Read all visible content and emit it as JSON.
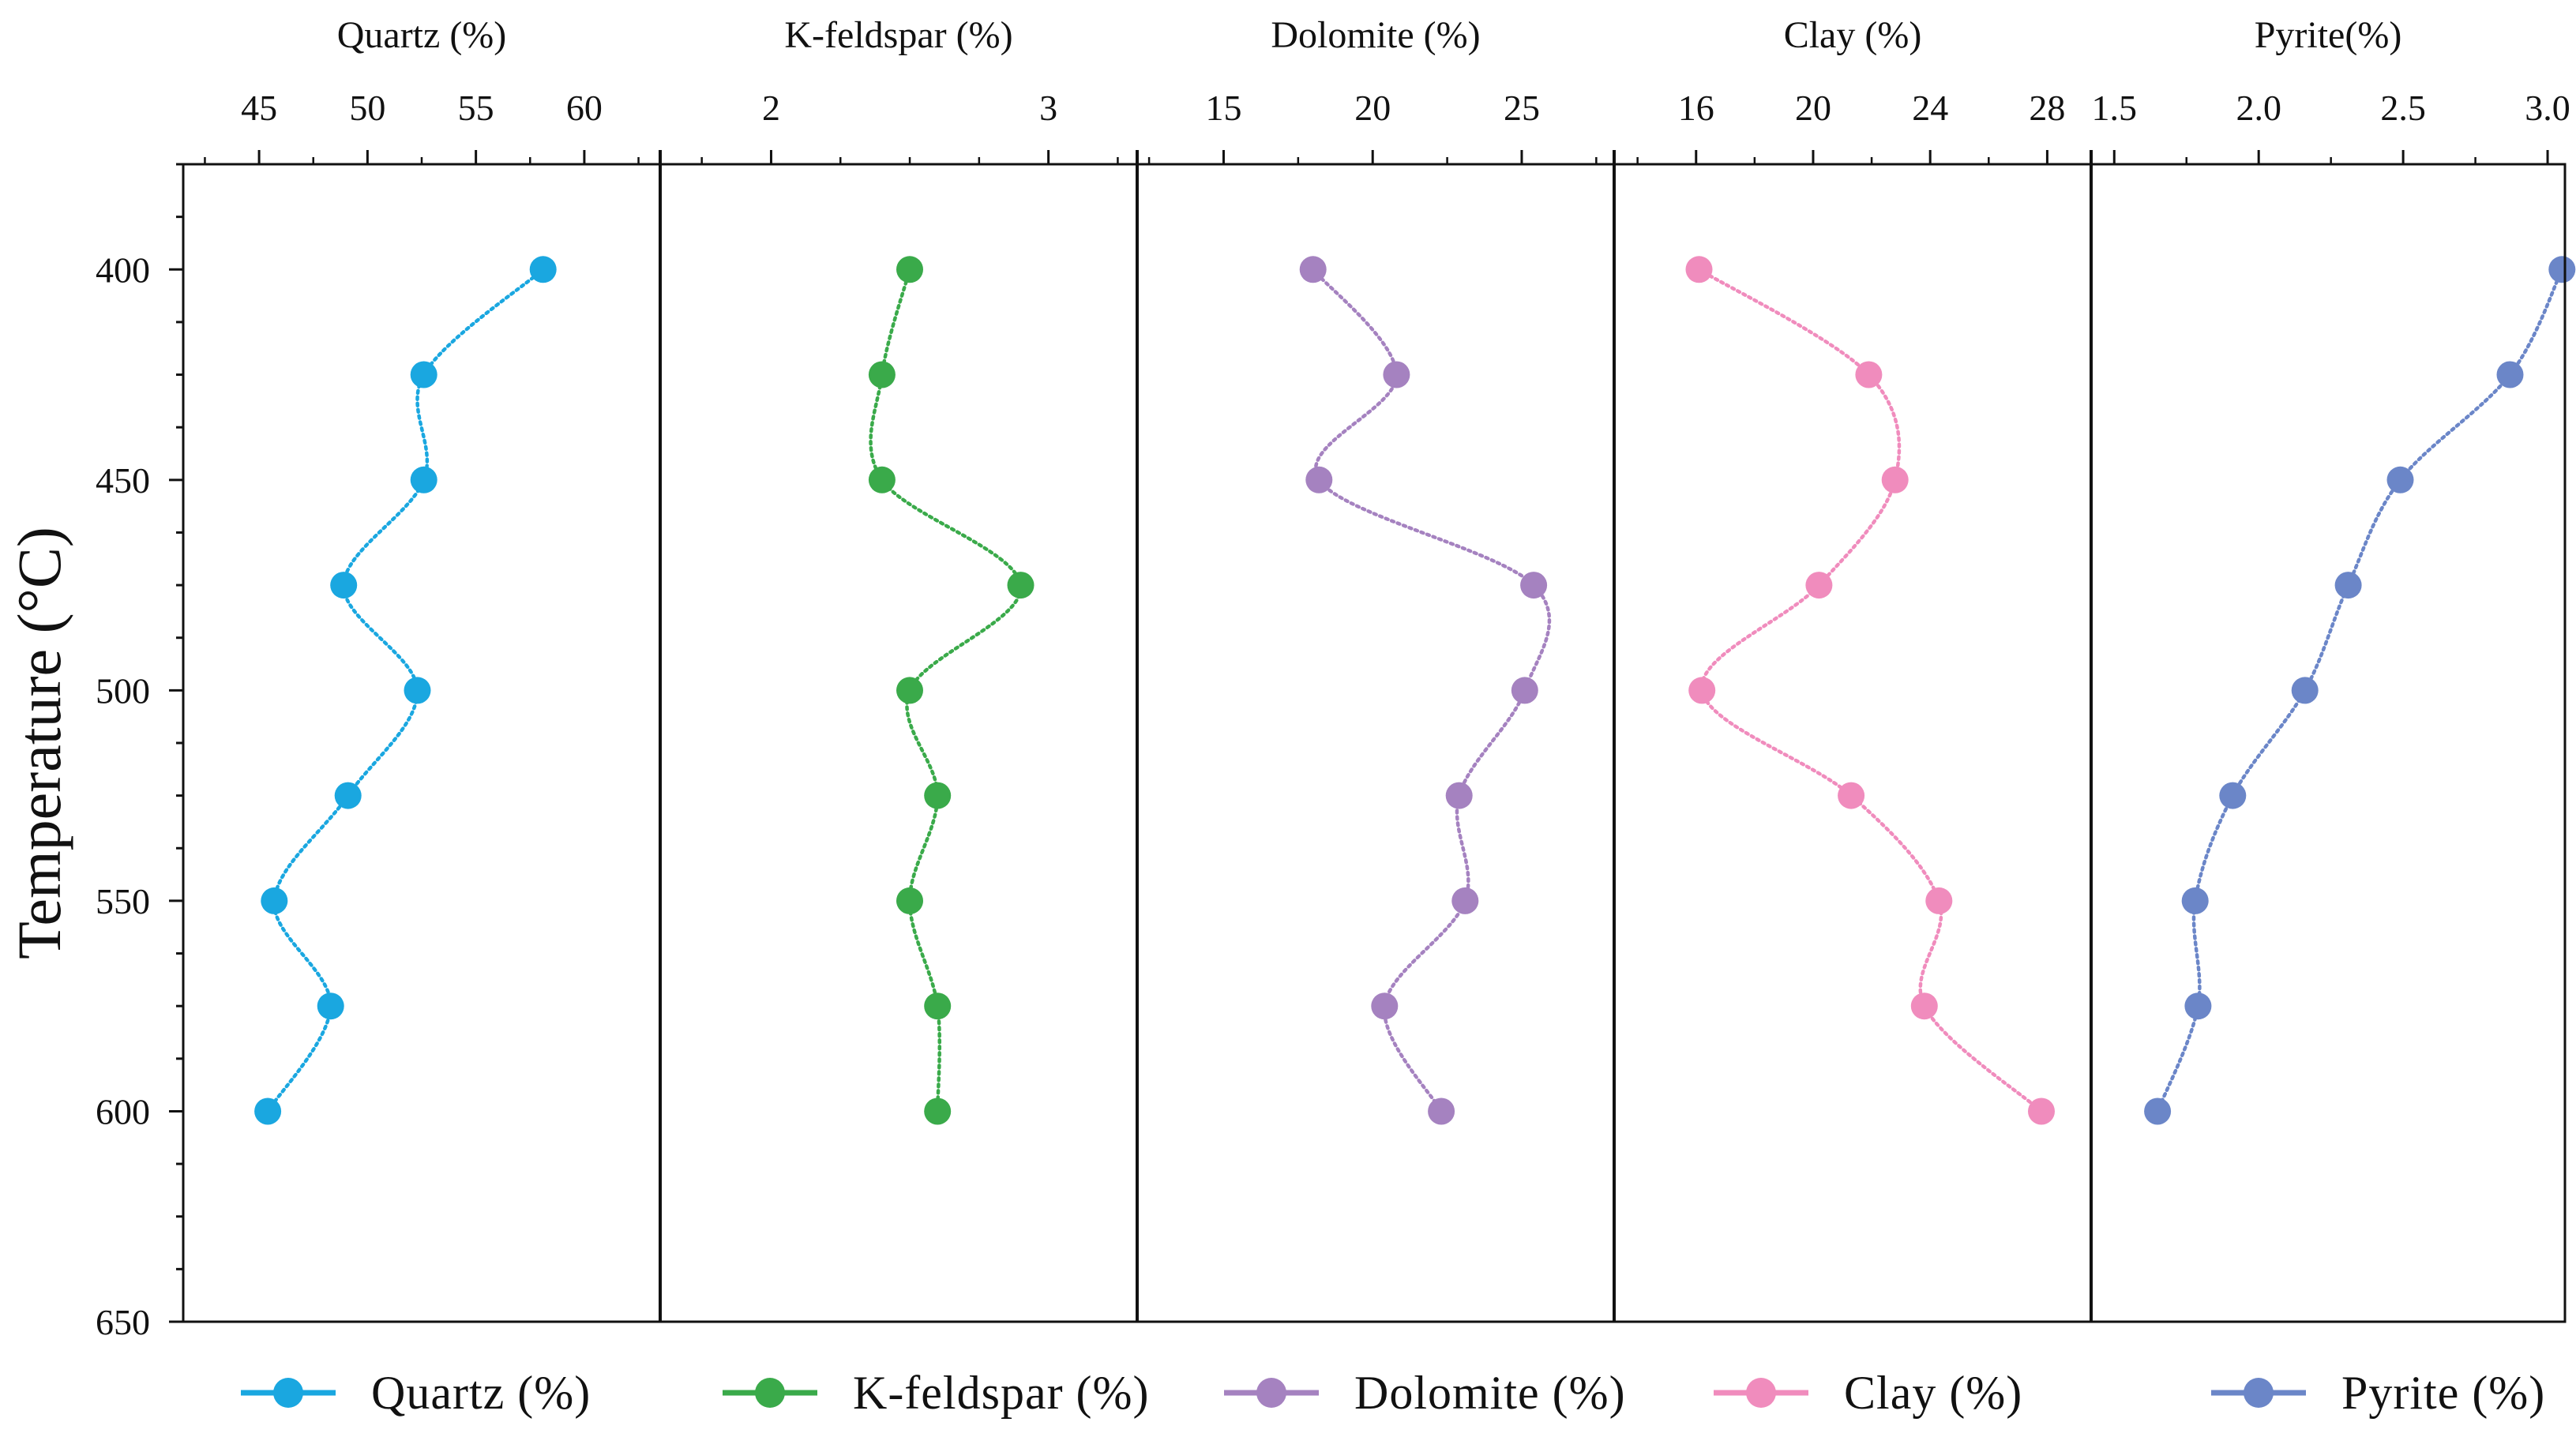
{
  "chart_data": {
    "type": "line",
    "layout": "five side-by-side panels sharing a vertical temperature axis",
    "ylabel": "Temperature (°C)",
    "y_ticks": [
      400,
      450,
      500,
      550,
      600,
      650
    ],
    "ylim": [
      375,
      650
    ],
    "temperatures": [
      400,
      425,
      450,
      475,
      500,
      525,
      550,
      575,
      600
    ],
    "series": [
      {
        "name": "Quartz (%)",
        "legend": "Quartz (%)",
        "color": "#1aa7e0",
        "xlim": [
          41.5,
          63.5
        ],
        "ticks": [
          "45",
          "50",
          "55",
          "60"
        ],
        "tick_values": [
          45,
          50,
          55,
          60
        ],
        "values": [
          58.1,
          52.6,
          52.6,
          48.9,
          52.3,
          49.1,
          45.7,
          48.3,
          45.4
        ]
      },
      {
        "name": "K-feldspar (%)",
        "legend": "K-feldspar (%)",
        "color": "#3aaa4a",
        "xlim": [
          1.6,
          3.32
        ],
        "ticks": [
          "2",
          "3"
        ],
        "tick_values": [
          2,
          3
        ],
        "values": [
          2.5,
          2.4,
          2.4,
          2.9,
          2.5,
          2.6,
          2.5,
          2.6,
          2.6
        ]
      },
      {
        "name": "Dolomite (%)",
        "legend": "Dolomite  (%)",
        "color": "#a582c0",
        "xlim": [
          12.1,
          28.1
        ],
        "ticks": [
          "15",
          "20",
          "25"
        ],
        "tick_values": [
          15,
          20,
          25
        ],
        "values": [
          18.0,
          20.8,
          18.2,
          25.4,
          25.1,
          22.9,
          23.1,
          20.4,
          22.3
        ]
      },
      {
        "name": "Clay (%)",
        "legend": "Clay (%)",
        "color": "#f08cbd",
        "xlim": [
          13.2,
          29.5
        ],
        "ticks": [
          "16",
          "20",
          "24",
          "28"
        ],
        "tick_values": [
          16,
          20,
          24,
          28
        ],
        "values": [
          16.1,
          21.9,
          22.8,
          20.2,
          16.2,
          21.3,
          24.3,
          23.8,
          27.8
        ]
      },
      {
        "name": "Pyrite(%)",
        "legend": "Pyrite (%)",
        "color": "#6b86c8",
        "xlim": [
          1.42,
          3.06
        ],
        "ticks": [
          "1.5",
          "2.0",
          "2.5",
          "3.0"
        ],
        "tick_values": [
          1.5,
          2.0,
          2.5,
          3.0
        ],
        "values": [
          3.05,
          2.87,
          2.49,
          2.31,
          2.16,
          1.91,
          1.78,
          1.79,
          1.65
        ]
      }
    ]
  }
}
